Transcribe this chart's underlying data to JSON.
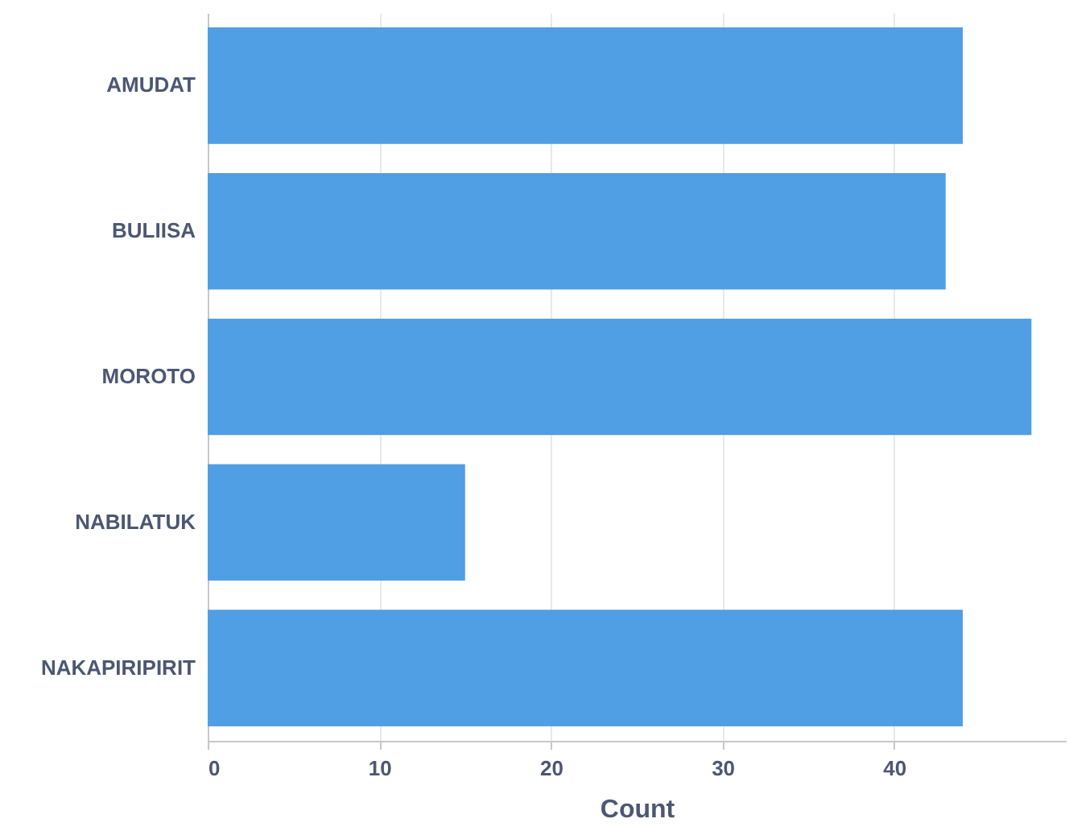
{
  "chart_data": {
    "type": "bar",
    "orientation": "horizontal",
    "xlabel": "Count",
    "categories": [
      "AMUDAT",
      "BULIISA",
      "MOROTO",
      "NABILATUK",
      "NAKAPIRIPIRIT"
    ],
    "values": [
      44,
      43,
      48,
      15,
      44
    ],
    "color": "#509ee3",
    "xlim": [
      0,
      50
    ],
    "xticks": [
      0,
      10,
      20,
      30,
      40
    ],
    "grid": "x"
  }
}
